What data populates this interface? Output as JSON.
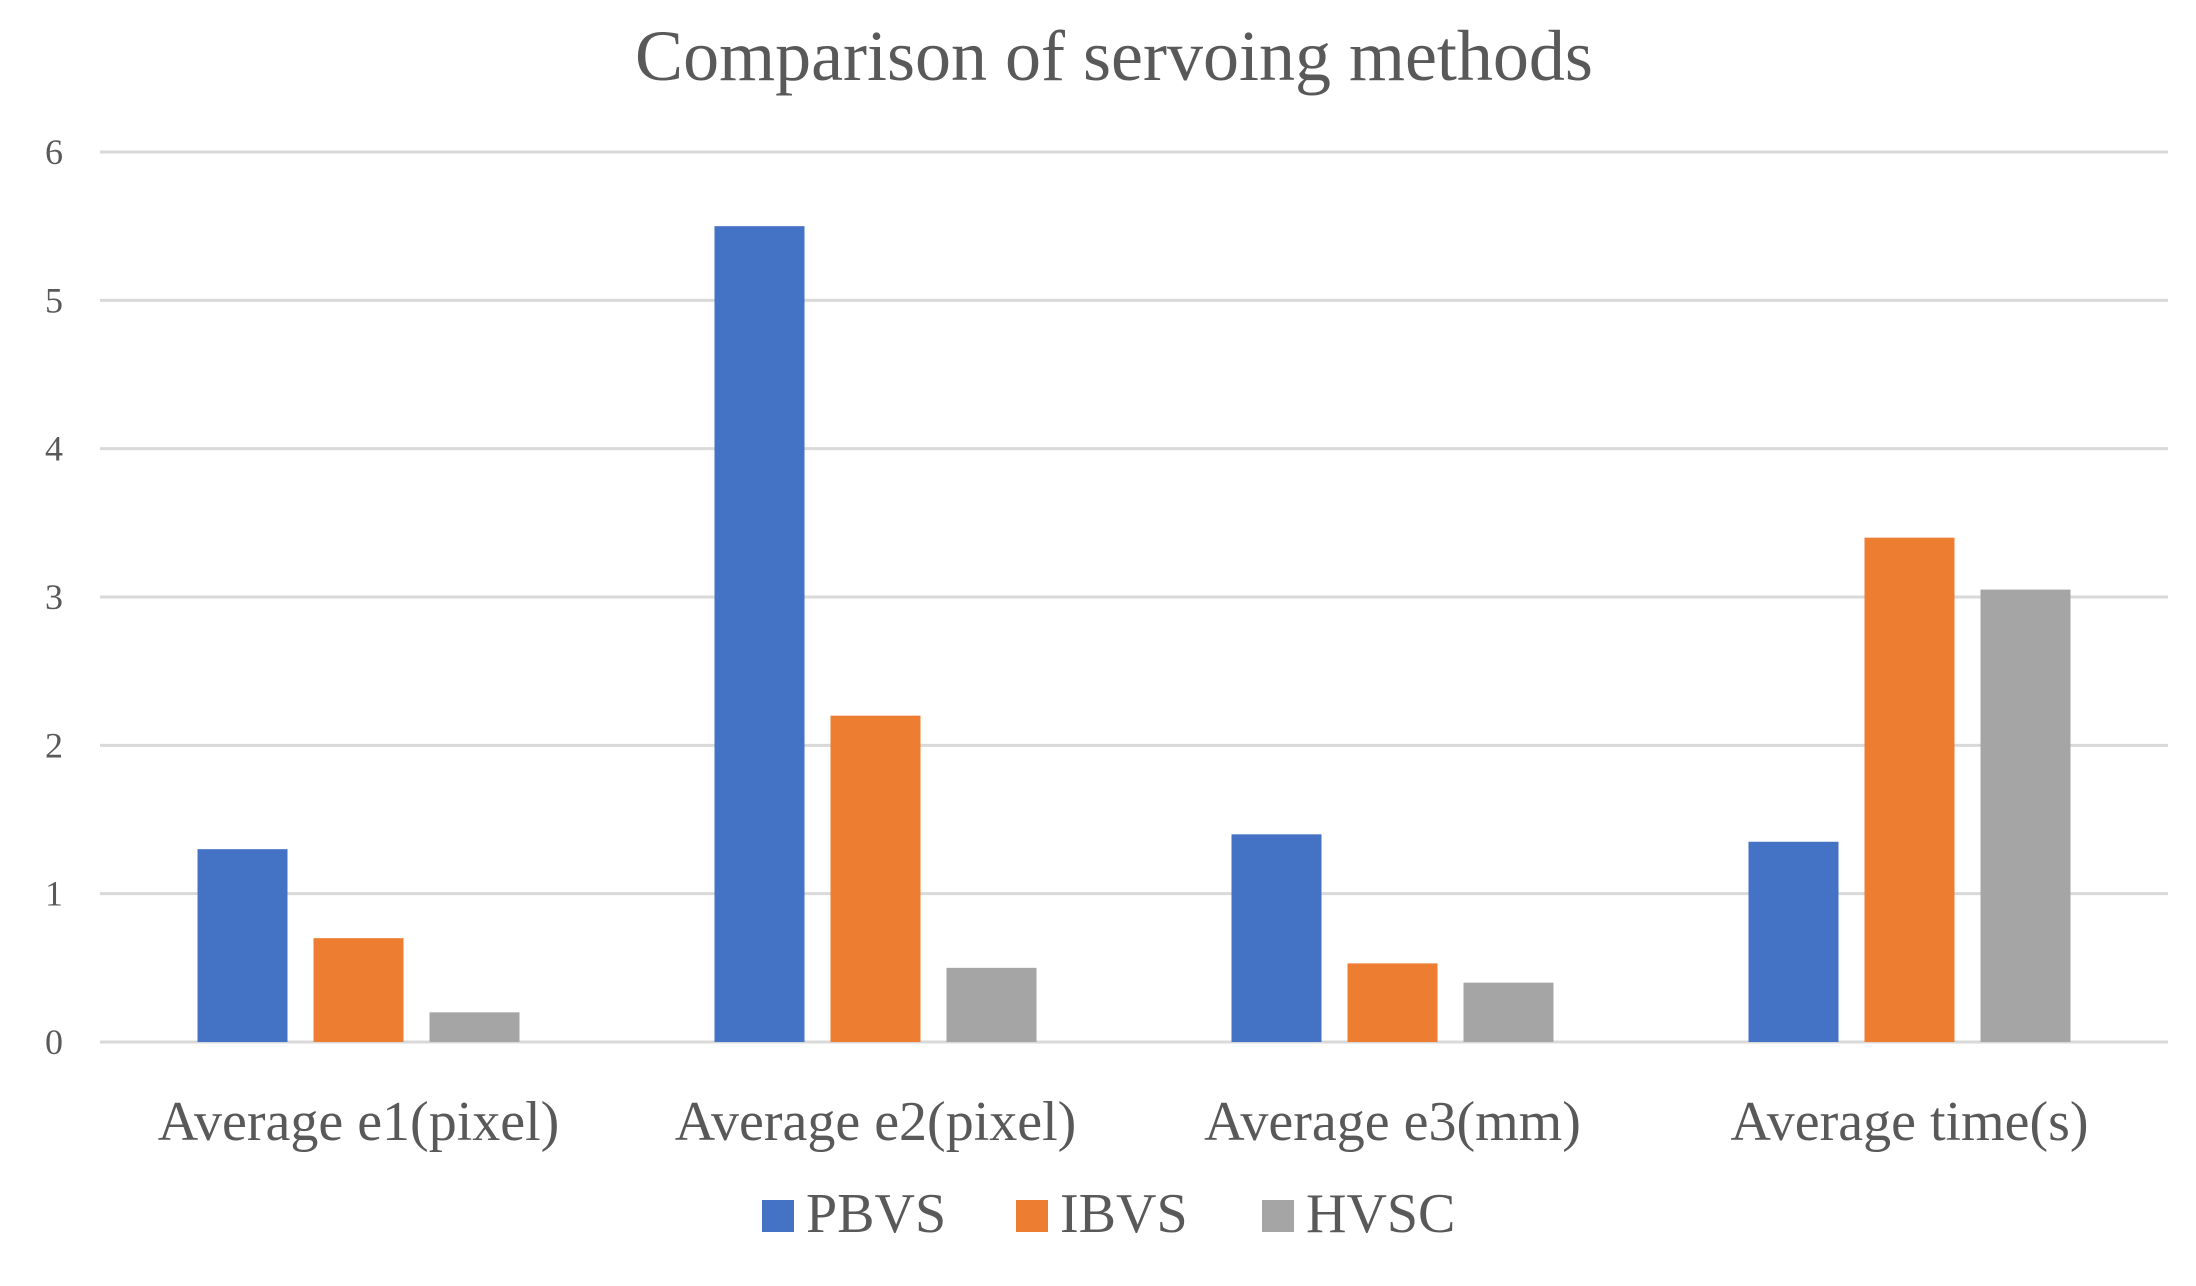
{
  "chart_data": {
    "type": "bar",
    "title": "Comparison of servoing methods",
    "xlabel": "",
    "ylabel": "",
    "ylim": [
      0,
      6
    ],
    "yticks": [
      0,
      1,
      2,
      3,
      4,
      5,
      6
    ],
    "grid": true,
    "legend_position": "bottom",
    "categories": [
      "Average e1(pixel)",
      "Average e2(pixel)",
      "Average e3(mm)",
      "Average time(s)"
    ],
    "series": [
      {
        "name": "PBVS",
        "color": "#4472c4",
        "values": [
          1.3,
          5.5,
          1.4,
          1.35
        ]
      },
      {
        "name": "IBVS",
        "color": "#ed7d31",
        "values": [
          0.7,
          2.2,
          0.53,
          3.4
        ]
      },
      {
        "name": "HVSC",
        "color": "#a5a5a5",
        "values": [
          0.2,
          0.5,
          0.4,
          3.05
        ]
      }
    ]
  }
}
